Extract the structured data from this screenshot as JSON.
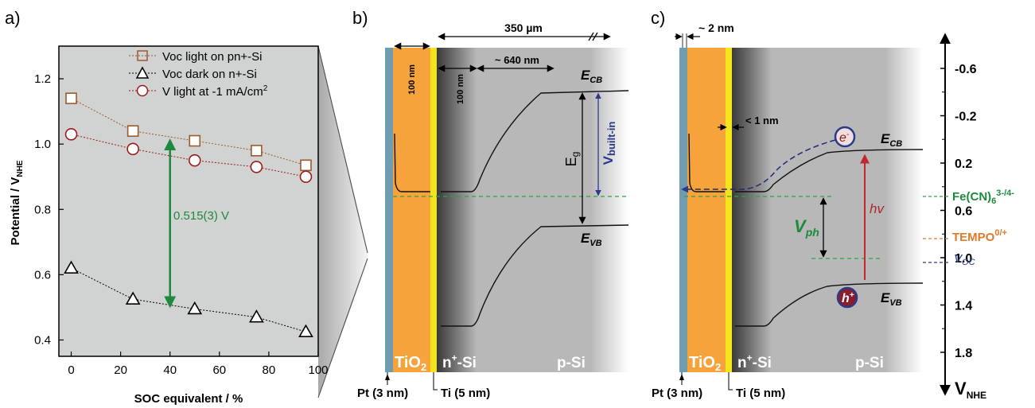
{
  "panel_labels": {
    "a": "a)",
    "b": "b)",
    "c": "c)"
  },
  "panel_a": {
    "ylabel_main": "Potential / V",
    "ylabel_sub": "NHE",
    "xlabel": "SOC equivalent / %",
    "annotation": "0.515(3) V",
    "legend": [
      {
        "label": "Voc  light on pn+-Si",
        "marker": "square"
      },
      {
        "label": "Voc dark on n+-Si",
        "marker": "triangle"
      },
      {
        "label": "V light at -1 mA/cm",
        "sup": "2",
        "marker": "circle"
      }
    ]
  },
  "chart_data": {
    "type": "scatter",
    "xlabel": "SOC equivalent / %",
    "ylabel": "Potential / VNHE",
    "xlim": [
      -5,
      100
    ],
    "ylim": [
      0.35,
      1.3
    ],
    "x_ticks": [
      0,
      20,
      40,
      60,
      80,
      100
    ],
    "y_ticks": [
      0.4,
      0.6,
      0.8,
      1.0,
      1.2
    ],
    "y_tick_labels": [
      "0.4",
      "0.6",
      "0.8",
      "1.0",
      "1.2"
    ],
    "series": [
      {
        "name": "Voc  light on pn+-Si",
        "marker": "square",
        "x": [
          0,
          25,
          50,
          75,
          95
        ],
        "y": [
          1.14,
          1.04,
          1.01,
          0.98,
          0.935
        ]
      },
      {
        "name": "Voc dark on n+-Si",
        "marker": "triangle",
        "x": [
          0,
          25,
          50,
          75,
          95
        ],
        "y": [
          0.62,
          0.525,
          0.495,
          0.47,
          0.425
        ]
      },
      {
        "name": "V light at -1 mA/cm2",
        "marker": "circle",
        "x": [
          0,
          25,
          50,
          75,
          95
        ],
        "y": [
          1.03,
          0.985,
          0.95,
          0.93,
          0.9
        ]
      }
    ],
    "colors": {
      "square": "#9c5a2c",
      "triangle": "#000000",
      "circle": "#9e1b1b",
      "arrow": "#1d8a3c"
    }
  },
  "panel_b": {
    "dim_350": "350 µm",
    "dim_640": "~ 640 nm",
    "dim_100_a": "100 nm",
    "dim_100_b": "100 nm",
    "ecb": "E",
    "ecb_sub": "CB",
    "evb": "E",
    "evb_sub": "VB",
    "eg": "E",
    "eg_sub": "g",
    "vbi": "V",
    "vbi_sub": "built-in",
    "tio2": "TiO",
    "tio2_sub": "2",
    "nsi": "n",
    "nsi_sup": "+",
    "nsi_rest": "-Si",
    "psi": "p-Si",
    "pt": "Pt (3 nm)",
    "ti": "Ti (5 nm)"
  },
  "panel_c": {
    "dim_2nm": "~ 2 nm",
    "dim_1nm": "< 1 nm",
    "ecb": "E",
    "ecb_sub": "CB",
    "evb": "E",
    "evb_sub": "VB",
    "vph": "V",
    "vph_sub": "ph",
    "hv": "hv",
    "electron": "e",
    "electron_sup": "-",
    "hole": "h",
    "hole_sup": "+",
    "tio2": "TiO",
    "tio2_sub": "2",
    "nsi": "n",
    "nsi_sup": "+",
    "nsi_rest": "-Si",
    "psi": "p-Si",
    "pt": "Pt (3 nm)",
    "ti": "Ti (5 nm)",
    "redox1": "Fe(CN)",
    "redox1_sub": "6",
    "redox1_sup": "3-/4-",
    "redox2": "TEMPO",
    "redox2_sup": "0/+",
    "voc": "V",
    "voc_sub": "OC"
  },
  "scale": {
    "ticks": [
      "-0.6",
      "-0.2",
      "0.2",
      "0.6",
      "1.0",
      "1.4",
      "1.8"
    ],
    "label": "V",
    "label_sub": "NHE"
  }
}
